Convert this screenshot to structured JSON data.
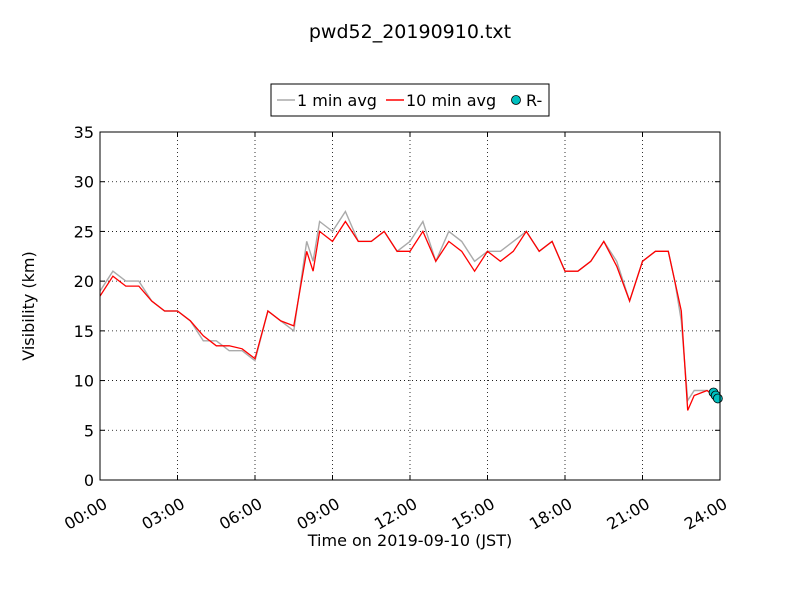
{
  "chart_data": {
    "type": "line",
    "title": "pwd52_20190910.txt",
    "xlabel": "Time on 2019-09-10 (JST)",
    "ylabel": "Visibility (km)",
    "xlim": [
      "00:00",
      "24:00"
    ],
    "ylim": [
      0,
      35
    ],
    "x_ticks": [
      "00:00",
      "03:00",
      "06:00",
      "09:00",
      "12:00",
      "15:00",
      "18:00",
      "21:00",
      "24:00"
    ],
    "y_ticks": [
      0,
      5,
      10,
      15,
      20,
      25,
      30,
      35
    ],
    "grid": true,
    "legend_placement": "top-center",
    "series": [
      {
        "name": "1 min avg",
        "color": "#aaaaaa",
        "style": "line",
        "x": [
          "00:00",
          "00:30",
          "01:00",
          "01:30",
          "02:00",
          "02:30",
          "03:00",
          "03:30",
          "04:00",
          "04:30",
          "05:00",
          "05:30",
          "06:00",
          "06:30",
          "07:00",
          "07:30",
          "08:00",
          "08:15",
          "08:30",
          "09:00",
          "09:30",
          "10:00",
          "10:30",
          "11:00",
          "11:30",
          "12:00",
          "12:30",
          "13:00",
          "13:30",
          "14:00",
          "14:30",
          "15:00",
          "15:30",
          "16:00",
          "16:30",
          "17:00",
          "17:30",
          "18:00",
          "18:30",
          "19:00",
          "19:30",
          "20:00",
          "20:30",
          "21:00",
          "21:30",
          "22:00",
          "22:15",
          "22:30",
          "22:45",
          "23:00",
          "23:30",
          "24:00"
        ],
        "values": [
          19,
          21,
          20,
          20,
          18,
          17,
          17,
          16,
          14,
          14,
          13,
          13,
          12,
          17,
          16,
          15,
          24,
          22,
          26,
          25,
          27,
          24,
          24,
          25,
          23,
          24,
          26,
          22,
          25,
          24,
          22,
          23,
          23,
          24,
          25,
          23,
          24,
          21,
          21,
          22,
          24,
          22,
          18,
          22,
          23,
          23,
          20,
          16,
          8,
          9,
          9,
          8
        ]
      },
      {
        "name": "10 min avg",
        "color": "#ff0000",
        "style": "line",
        "x": [
          "00:00",
          "00:30",
          "01:00",
          "01:30",
          "02:00",
          "02:30",
          "03:00",
          "03:30",
          "04:00",
          "04:30",
          "05:00",
          "05:30",
          "06:00",
          "06:30",
          "07:00",
          "07:30",
          "08:00",
          "08:15",
          "08:30",
          "09:00",
          "09:30",
          "10:00",
          "10:30",
          "11:00",
          "11:30",
          "12:00",
          "12:30",
          "13:00",
          "13:30",
          "14:00",
          "14:30",
          "15:00",
          "15:30",
          "16:00",
          "16:30",
          "17:00",
          "17:30",
          "18:00",
          "18:30",
          "19:00",
          "19:30",
          "20:00",
          "20:30",
          "21:00",
          "21:30",
          "22:00",
          "22:15",
          "22:30",
          "22:45",
          "23:00",
          "23:30",
          "24:00"
        ],
        "values": [
          18.5,
          20.5,
          19.5,
          19.5,
          18,
          17,
          17,
          16,
          14.5,
          13.5,
          13.5,
          13.2,
          12.2,
          17,
          16,
          15.5,
          23,
          21,
          25,
          24,
          26,
          24,
          24,
          25,
          23,
          23,
          25,
          22,
          24,
          23,
          21,
          23,
          22,
          23,
          25,
          23,
          24,
          21,
          21,
          22,
          24,
          21.5,
          18,
          22,
          23,
          23,
          20,
          17,
          7,
          8.5,
          9,
          8
        ]
      },
      {
        "name": "R-",
        "color": "#00bfbf",
        "style": "marker",
        "x": [
          "23:45",
          "23:50",
          "23:55"
        ],
        "values": [
          8.8,
          8.5,
          8.2
        ]
      }
    ]
  }
}
